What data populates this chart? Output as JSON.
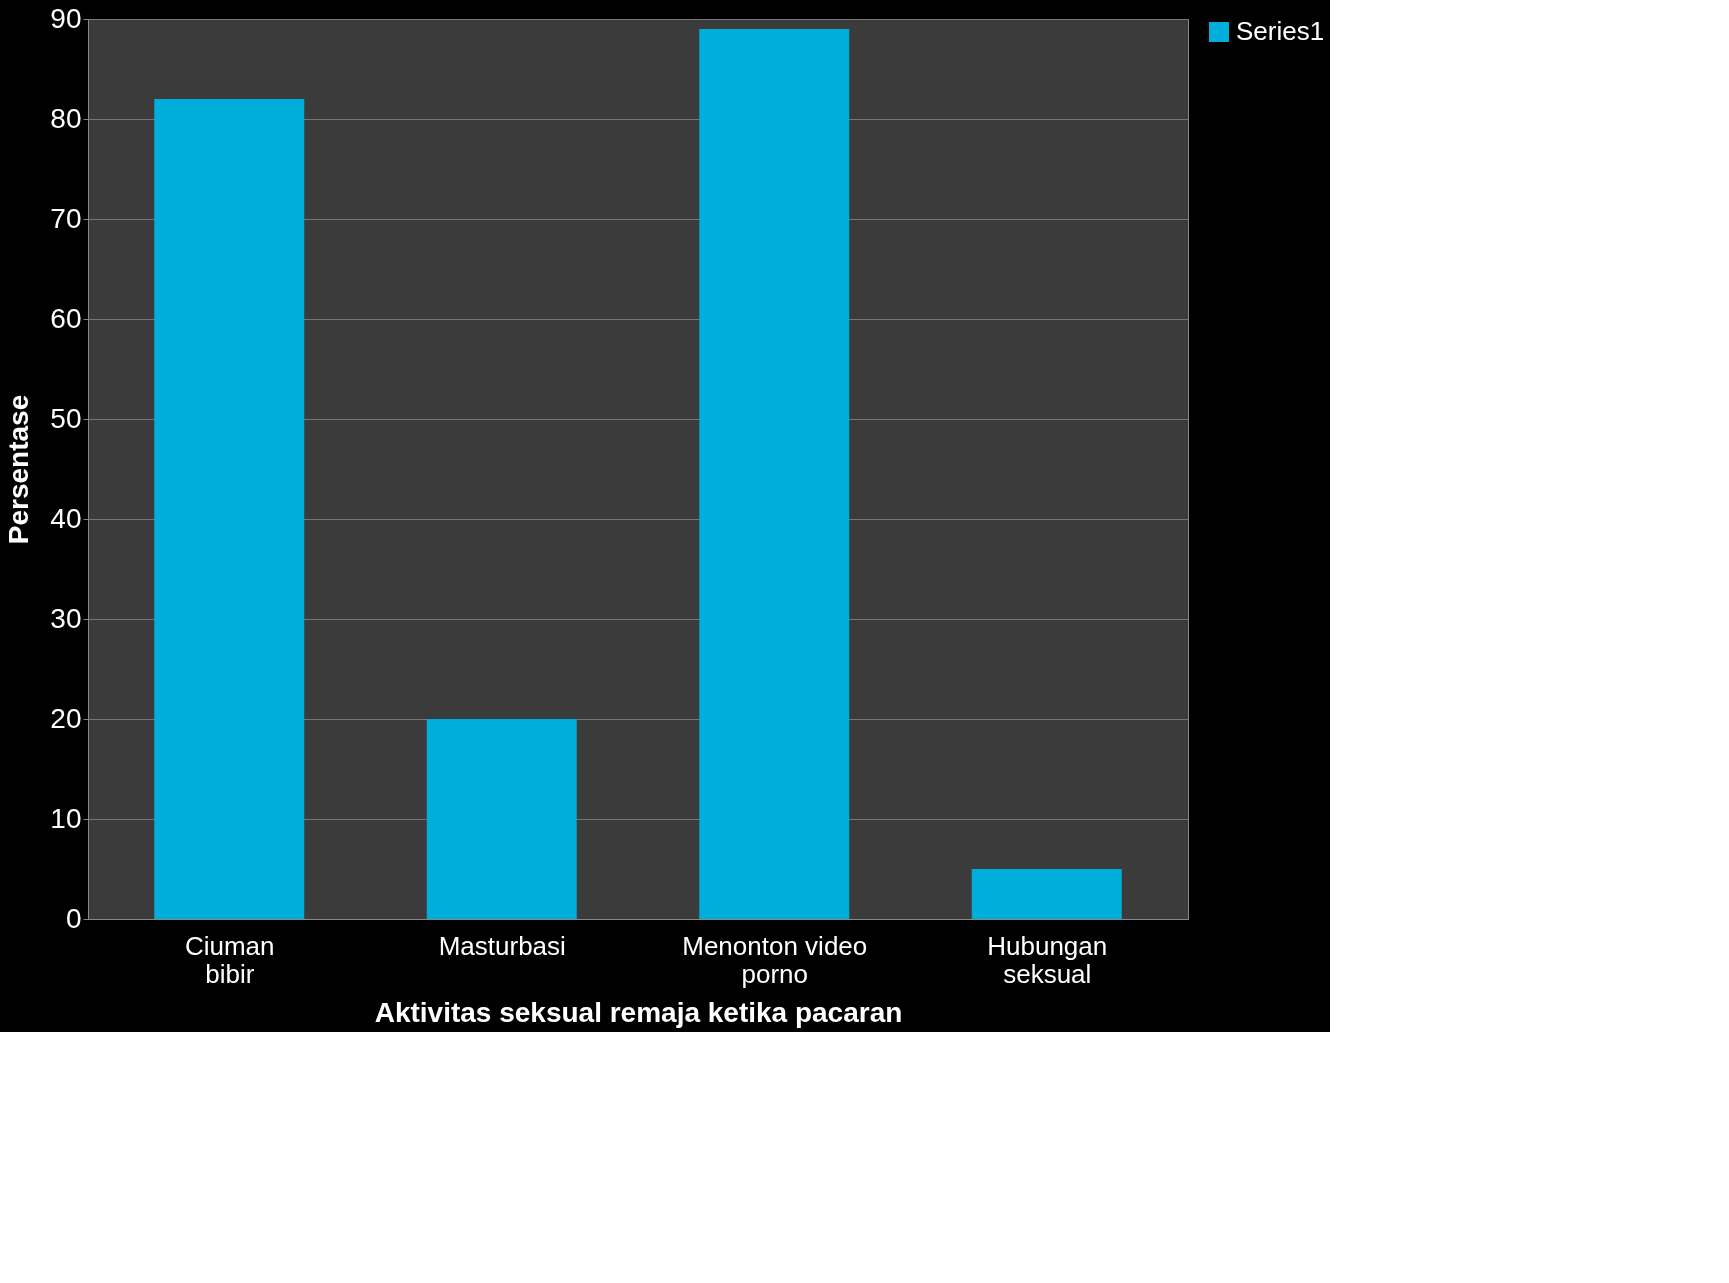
{
  "chart_data": {
    "type": "bar",
    "xlabel": "Aktivitas seksual remaja ketika pacaran",
    "ylabel": "Persentase",
    "categories": [
      "Ciuman bibir",
      "Masturbasi",
      "Menonton video porno",
      "Hubungan seksual"
    ],
    "series": [
      {
        "name": "Series1",
        "color": "#00aedb",
        "values": [
          82,
          20,
          89,
          5
        ]
      }
    ],
    "ylim": [
      0,
      90
    ],
    "yticks": [
      0,
      10,
      20,
      30,
      40,
      50,
      60,
      70,
      80,
      90
    ],
    "grid": "y",
    "legend": "right"
  }
}
